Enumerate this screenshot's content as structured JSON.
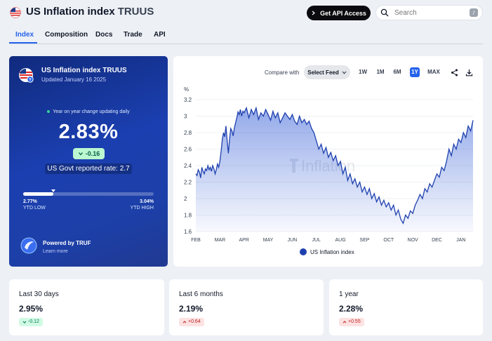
{
  "header": {
    "title": "US Inflation index",
    "ticker": "TRUUS",
    "api_button": "Get API Access",
    "search_placeholder": "Search",
    "search_shortcut": "/"
  },
  "tabs": [
    {
      "label": "Index",
      "active": true
    },
    {
      "label": "Composition",
      "active": false
    },
    {
      "label": "Docs",
      "active": false
    },
    {
      "label": "Trade",
      "active": false
    },
    {
      "label": "API",
      "active": false
    }
  ],
  "summary": {
    "title": "US Inflation index",
    "ticker": "TRUUS",
    "updated": "Updated January 16 2025",
    "yoy_label": "Year on year change updating daily",
    "value": "2.83%",
    "change": "-0.16",
    "govt_rate": "US Govt reported rate: 2.7",
    "ytd_low_value": "2.77%",
    "ytd_low_label": "YTD LOW",
    "ytd_high_value": "3.04%",
    "ytd_high_label": "YTD HIGH",
    "ytd_position_fraction": 0.23,
    "powered_by": "Powered by TRUF",
    "learn_more": "Learn more"
  },
  "chart_controls": {
    "compare_label": "Compare with",
    "select_feed": "Select Feed",
    "ranges": [
      {
        "label": "1W",
        "active": false
      },
      {
        "label": "1M",
        "active": false
      },
      {
        "label": "6M",
        "active": false
      },
      {
        "label": "1Y",
        "active": true
      },
      {
        "label": "MAX",
        "active": false
      }
    ]
  },
  "chart_data": {
    "type": "area",
    "ylabel": "%",
    "ylim": [
      1.6,
      3.2
    ],
    "yticks": [
      "3.2",
      "3",
      "2.8",
      "2.6",
      "2.4",
      "2.2",
      "2",
      "1.8",
      "1.6"
    ],
    "categories": [
      "FEB",
      "MAR",
      "APR",
      "MAY",
      "JUN",
      "JUL",
      "AUG",
      "SEP",
      "OCT",
      "NOV",
      "DEC",
      "JAN"
    ],
    "watermark": "Inflation",
    "legend_position": "bottom",
    "color": "#1e40af",
    "series": [
      {
        "name": "US Inflation index",
        "x": [
          0.0,
          0.05,
          0.1,
          0.15,
          0.2,
          0.25,
          0.3,
          0.35,
          0.4,
          0.45,
          0.5,
          0.55,
          0.6,
          0.65,
          0.7,
          0.75,
          0.8,
          0.85,
          0.9,
          0.95,
          1.0,
          1.05,
          1.1,
          1.15,
          1.2,
          1.25,
          1.3,
          1.35,
          1.4,
          1.45,
          1.5,
          1.55,
          1.6,
          1.65,
          1.7,
          1.75,
          1.8,
          1.85,
          1.9,
          1.95,
          2.0,
          2.1,
          2.2,
          2.3,
          2.4,
          2.5,
          2.6,
          2.7,
          2.8,
          2.9,
          3.0,
          3.1,
          3.2,
          3.3,
          3.4,
          3.5,
          3.6,
          3.7,
          3.8,
          3.9,
          4.0,
          4.1,
          4.2,
          4.3,
          4.4,
          4.5,
          4.6,
          4.7,
          4.8,
          4.9,
          5.0,
          5.1,
          5.2,
          5.3,
          5.4,
          5.5,
          5.6,
          5.7,
          5.8,
          5.9,
          6.0,
          6.1,
          6.2,
          6.3,
          6.4,
          6.5,
          6.6,
          6.7,
          6.8,
          6.9,
          7.0,
          7.1,
          7.2,
          7.3,
          7.4,
          7.5,
          7.6,
          7.7,
          7.8,
          7.9,
          8.0,
          8.1,
          8.2,
          8.3,
          8.4,
          8.5,
          8.6,
          8.7,
          8.8,
          8.9,
          9.0,
          9.1,
          9.2,
          9.3,
          9.4,
          9.5,
          9.6,
          9.7,
          9.8,
          9.9,
          10.0,
          10.1,
          10.2,
          10.3,
          10.4,
          10.5,
          10.6,
          10.7,
          10.8,
          10.9,
          11.0,
          11.1,
          11.2,
          11.3,
          11.4,
          11.5
        ],
        "values": [
          2.3,
          2.28,
          2.35,
          2.32,
          2.25,
          2.38,
          2.33,
          2.3,
          2.36,
          2.34,
          2.4,
          2.35,
          2.38,
          2.33,
          2.4,
          2.36,
          2.3,
          2.35,
          2.42,
          2.38,
          2.45,
          2.58,
          2.72,
          2.8,
          2.75,
          2.88,
          2.7,
          2.55,
          2.72,
          2.85,
          2.82,
          2.76,
          2.86,
          2.92,
          2.98,
          3.05,
          3.02,
          3.08,
          3.0,
          3.06,
          3.04,
          3.1,
          2.98,
          3.08,
          3.02,
          3.1,
          2.96,
          3.04,
          3.0,
          3.08,
          3.02,
          2.95,
          3.06,
          2.98,
          3.04,
          2.92,
          2.98,
          3.04,
          3.0,
          2.96,
          3.02,
          2.94,
          2.9,
          3.0,
          2.92,
          2.96,
          2.9,
          2.94,
          2.85,
          2.8,
          2.7,
          2.6,
          2.66,
          2.55,
          2.62,
          2.5,
          2.56,
          2.46,
          2.52,
          2.4,
          2.45,
          2.3,
          2.38,
          2.22,
          2.3,
          2.18,
          2.24,
          2.14,
          2.2,
          2.08,
          2.14,
          2.05,
          2.12,
          2.0,
          2.06,
          1.96,
          2.02,
          1.92,
          1.98,
          1.9,
          1.95,
          1.86,
          1.92,
          1.8,
          1.86,
          1.75,
          1.7,
          1.8,
          1.76,
          1.85,
          1.82,
          1.92,
          1.98,
          2.05,
          2.0,
          2.12,
          2.08,
          2.18,
          2.14,
          2.22,
          2.3,
          2.26,
          2.38,
          2.34,
          2.45,
          2.6,
          2.52,
          2.66,
          2.6,
          2.72,
          2.68,
          2.8,
          2.74,
          2.88,
          2.82,
          2.95
        ]
      }
    ]
  },
  "stats": [
    {
      "label": "Last 30 days",
      "value": "2.95%",
      "change": "-0.12",
      "direction": "down"
    },
    {
      "label": "Last 6 months",
      "value": "2.19%",
      "change": "+0.64",
      "direction": "up"
    },
    {
      "label": "1 year",
      "value": "2.28%",
      "change": "+0.55",
      "direction": "up"
    }
  ]
}
